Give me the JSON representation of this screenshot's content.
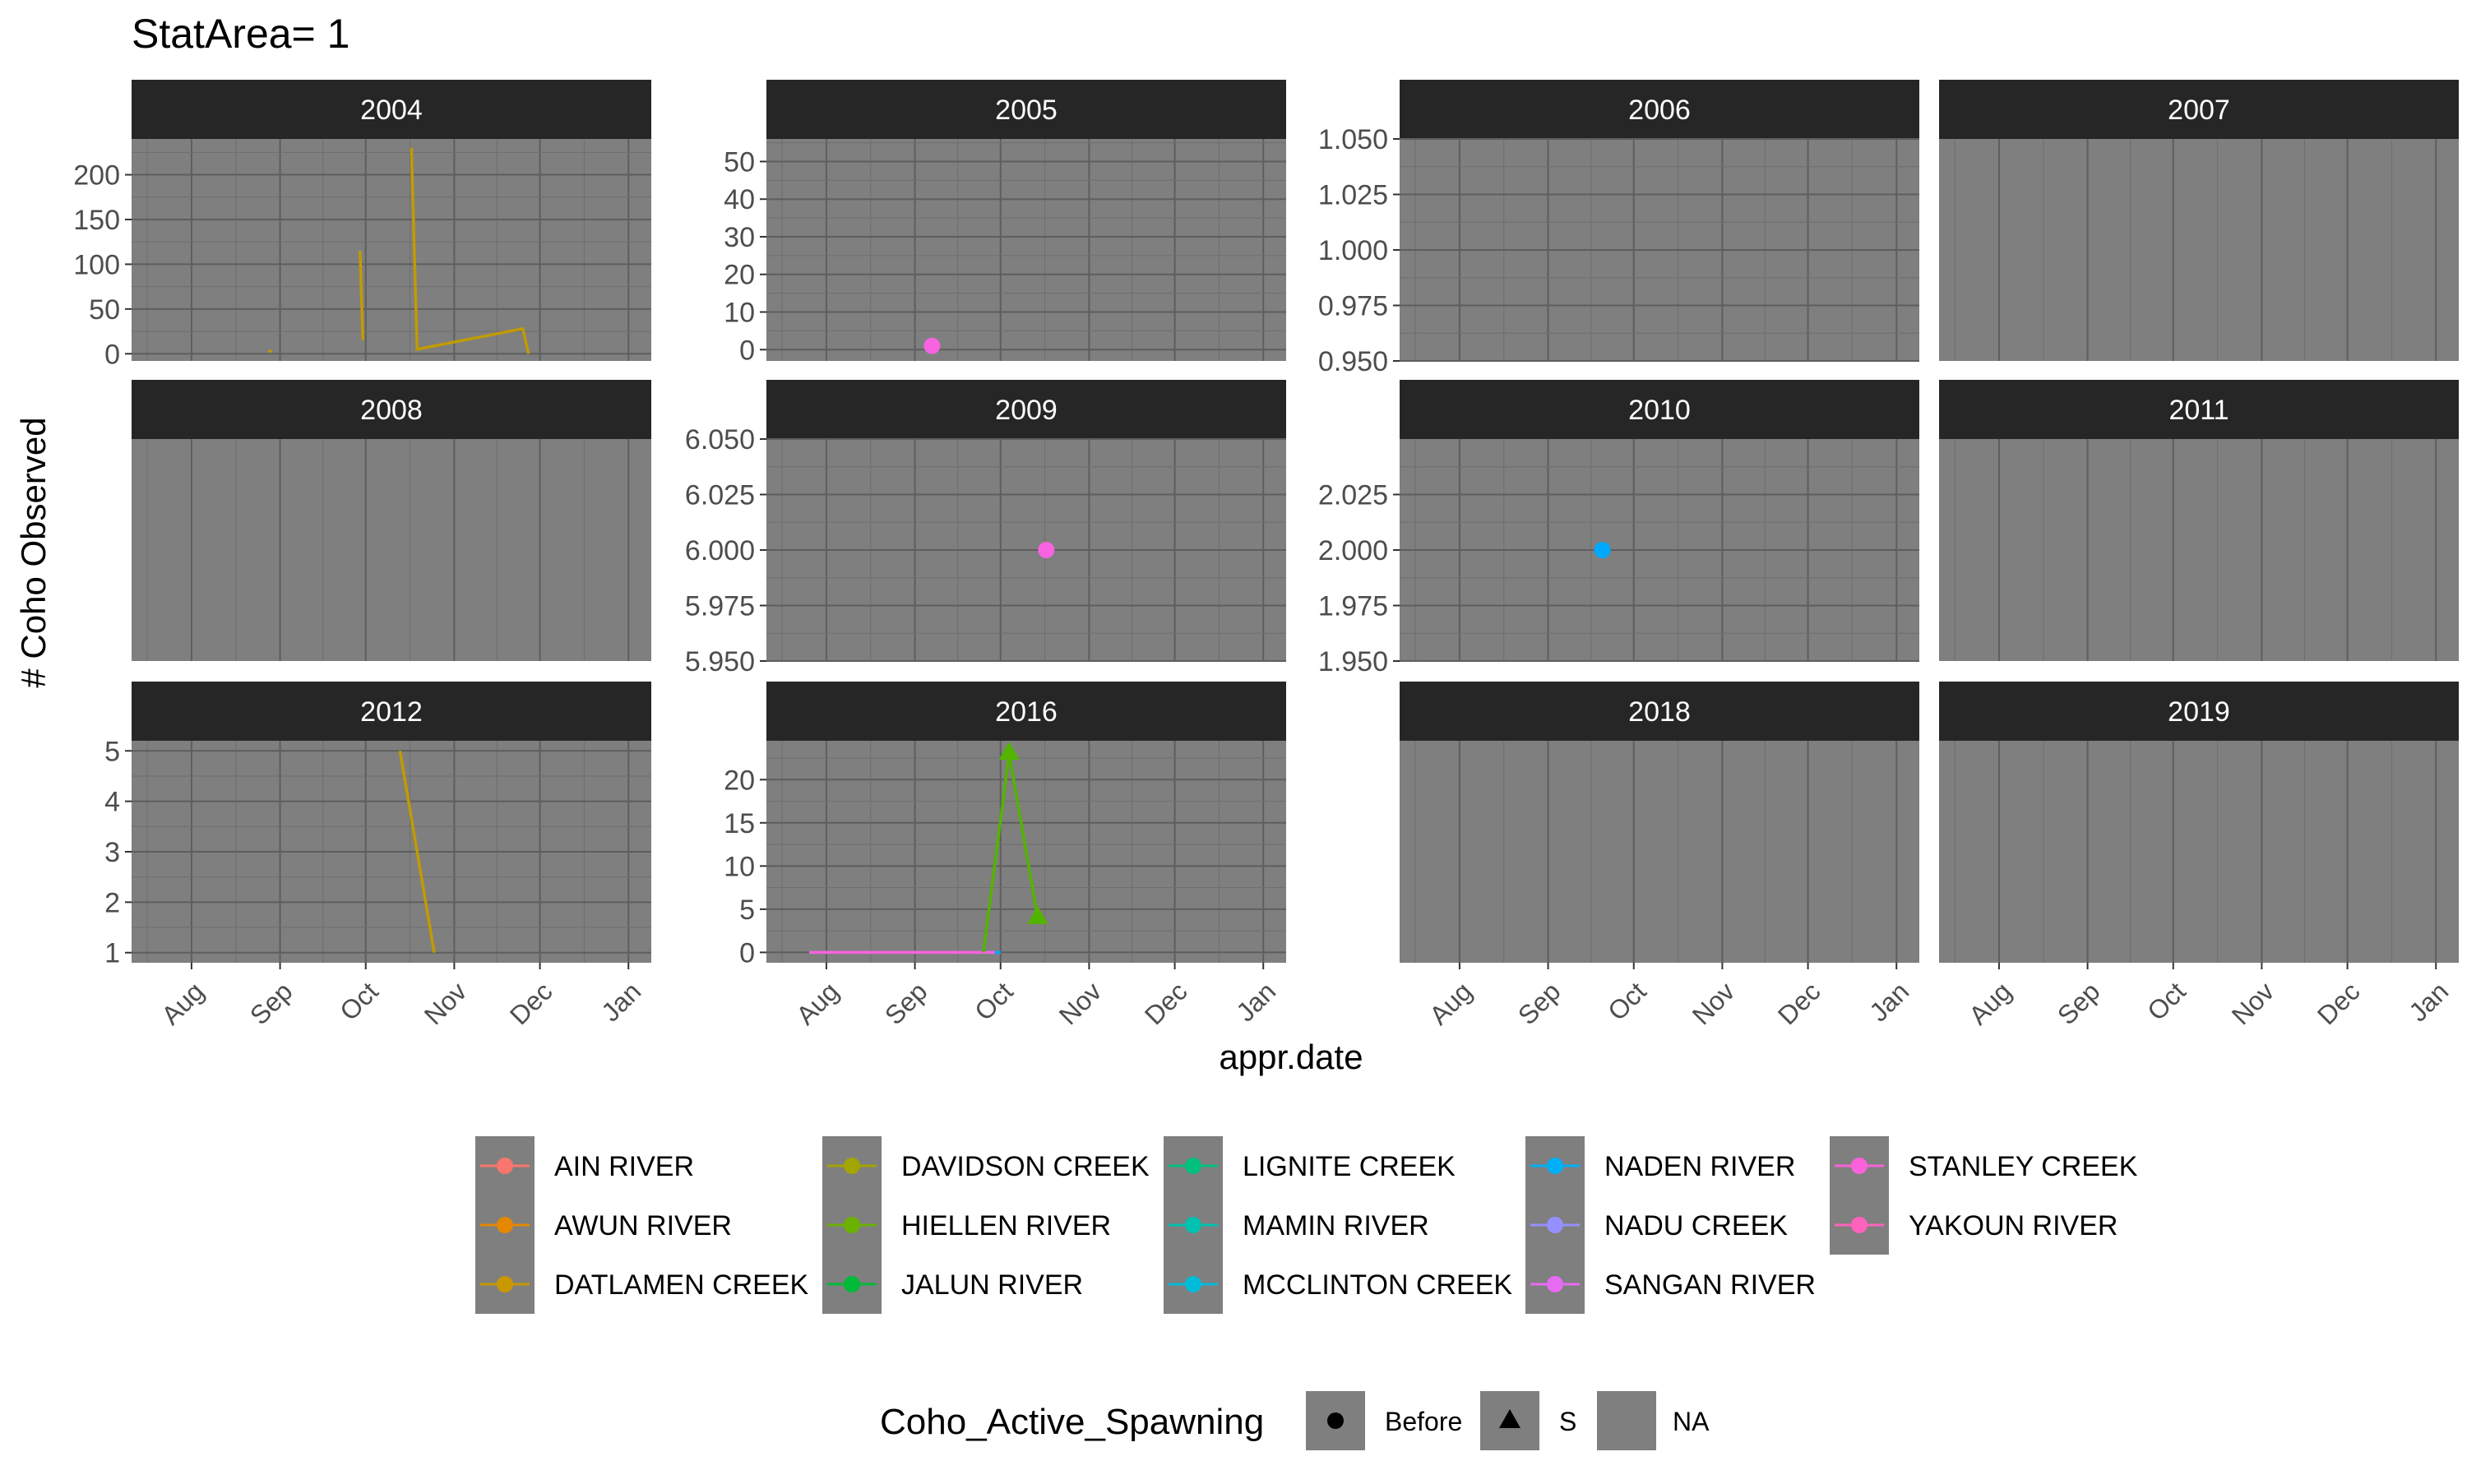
{
  "chart_data": {
    "type": "line",
    "title": "StatArea= 1",
    "xlabel": "appr.date",
    "ylabel": "# Coho Observed",
    "x_ticks": [
      "Aug",
      "Sep",
      "Oct",
      "Nov",
      "Dec",
      "Jan"
    ],
    "x_tick_dates": [
      "08-01",
      "09-01",
      "10-01",
      "11-01",
      "12-01",
      "01-01"
    ],
    "xlim": [
      "07-11",
      "01-09"
    ],
    "panel_background": "#7f7f7f",
    "strip_background": "#262626",
    "panels": [
      {
        "year": "2004",
        "ylim": [
          -8,
          240
        ],
        "y_ticks": [
          0,
          50,
          100,
          150,
          200
        ],
        "series": [
          {
            "name": "DATLAMEN CREEK",
            "color": "#c09b00",
            "points": [
              [
                "08-28",
                4
              ],
              [
                "08-29",
                2
              ]
            ],
            "markers": []
          },
          {
            "name": "DATLAMEN CREEK",
            "color": "#c09b00",
            "points": [
              [
                "09-29",
                115
              ],
              [
                "09-30",
                15
              ]
            ],
            "markers": []
          },
          {
            "name": "DATLAMEN CREEK",
            "color": "#c09b00",
            "points": [
              [
                "10-17",
                230
              ],
              [
                "10-19",
                5
              ],
              [
                "11-25",
                28
              ],
              [
                "11-27",
                0
              ]
            ],
            "markers": []
          }
        ]
      },
      {
        "year": "2005",
        "ylim": [
          -3,
          56
        ],
        "y_ticks": [
          0,
          10,
          20,
          30,
          40,
          50
        ],
        "series": [
          {
            "name": "STANLEY CREEK",
            "color": "#f763e0",
            "points": [
              [
                "09-07",
                1
              ]
            ],
            "markers": [
              "circle"
            ]
          }
        ]
      },
      {
        "year": "2006",
        "ylim": [
          0.95,
          1.05
        ],
        "y_ticks": [
          "0.950",
          "0.975",
          "1.000",
          "1.025",
          "1.050"
        ],
        "series": []
      },
      {
        "year": "2007",
        "ylim": null,
        "y_ticks": [],
        "series": []
      },
      {
        "year": "2008",
        "ylim": null,
        "y_ticks": [],
        "series": []
      },
      {
        "year": "2009",
        "ylim": [
          5.95,
          6.05
        ],
        "y_ticks": [
          "5.950",
          "5.975",
          "6.000",
          "6.025",
          "6.050"
        ],
        "series": [
          {
            "name": "STANLEY CREEK",
            "color": "#f763e0",
            "points": [
              [
                "10-17",
                6
              ]
            ],
            "markers": [
              "circle"
            ]
          }
        ]
      },
      {
        "year": "2010",
        "ylim": [
          1.95,
          2.05
        ],
        "y_ticks": [
          "1.950",
          "1.975",
          "2.000",
          "2.025"
        ],
        "series": [
          {
            "name": "MCCLINTON CREEK",
            "color": "#00a9ff",
            "points": [
              [
                "09-20",
                2
              ]
            ],
            "markers": [
              "circle"
            ]
          }
        ]
      },
      {
        "year": "2011",
        "ylim": null,
        "y_ticks": [],
        "series": []
      },
      {
        "year": "2012",
        "ylim": [
          0.8,
          5.2
        ],
        "y_ticks": [
          1,
          2,
          3,
          4,
          5
        ],
        "series": [
          {
            "name": "DATLAMEN CREEK",
            "color": "#c09b00",
            "points": [
              [
                "10-13",
                5
              ],
              [
                "10-25",
                1
              ]
            ],
            "markers": []
          }
        ]
      },
      {
        "year": "2016",
        "ylim": [
          -1.2,
          24.5
        ],
        "y_ticks": [
          0,
          5,
          10,
          15,
          20
        ],
        "series": [
          {
            "name": "STANLEY CREEK",
            "color": "#f763e0",
            "points": [
              [
                "07-26",
                0
              ],
              [
                "09-29",
                0
              ]
            ],
            "markers": []
          },
          {
            "name": "MCCLINTON CREEK",
            "color": "#00a9ff",
            "points": [
              [
                "09-29",
                0
              ],
              [
                "10-01",
                0
              ]
            ],
            "markers": []
          },
          {
            "name": "HIELLEN RIVER",
            "color": "#53b400",
            "points": [
              [
                "09-25",
                0
              ],
              [
                "10-04",
                23
              ],
              [
                "10-14",
                4
              ]
            ],
            "markers": [
              "none",
              "triangle",
              "triangle"
            ]
          }
        ]
      },
      {
        "year": "2018",
        "ylim": null,
        "y_ticks": [],
        "series": []
      },
      {
        "year": "2019",
        "ylim": null,
        "y_ticks": [],
        "series": []
      }
    ],
    "legend_river": {
      "entries": [
        {
          "label": "AIN RIVER",
          "color": "#f8766d"
        },
        {
          "label": "AWUN RIVER",
          "color": "#e58700"
        },
        {
          "label": "DATLAMEN CREEK",
          "color": "#c99800"
        },
        {
          "label": "DAVIDSON CREEK",
          "color": "#a3a500"
        },
        {
          "label": "HIELLEN RIVER",
          "color": "#6bb100"
        },
        {
          "label": "JALUN RIVER",
          "color": "#00ba38"
        },
        {
          "label": "LIGNITE CREEK",
          "color": "#00bf7d"
        },
        {
          "label": "MAMIN RIVER",
          "color": "#00c0af"
        },
        {
          "label": "MCCLINTON CREEK",
          "color": "#00bcd8"
        },
        {
          "label": "NADEN RIVER",
          "color": "#00b0f6"
        },
        {
          "label": "NADU CREEK",
          "color": "#9590ff"
        },
        {
          "label": "SANGAN RIVER",
          "color": "#e76bf3"
        },
        {
          "label": "STANLEY CREEK",
          "color": "#fa62db"
        },
        {
          "label": "YAKOUN RIVER",
          "color": "#ff62bc"
        }
      ]
    },
    "legend_shape": {
      "title": "Coho_Active_Spawning",
      "entries": [
        {
          "label": "Before",
          "shape": "circle"
        },
        {
          "label": "S",
          "shape": "triangle"
        },
        {
          "label": "NA",
          "shape": "none"
        }
      ]
    }
  }
}
